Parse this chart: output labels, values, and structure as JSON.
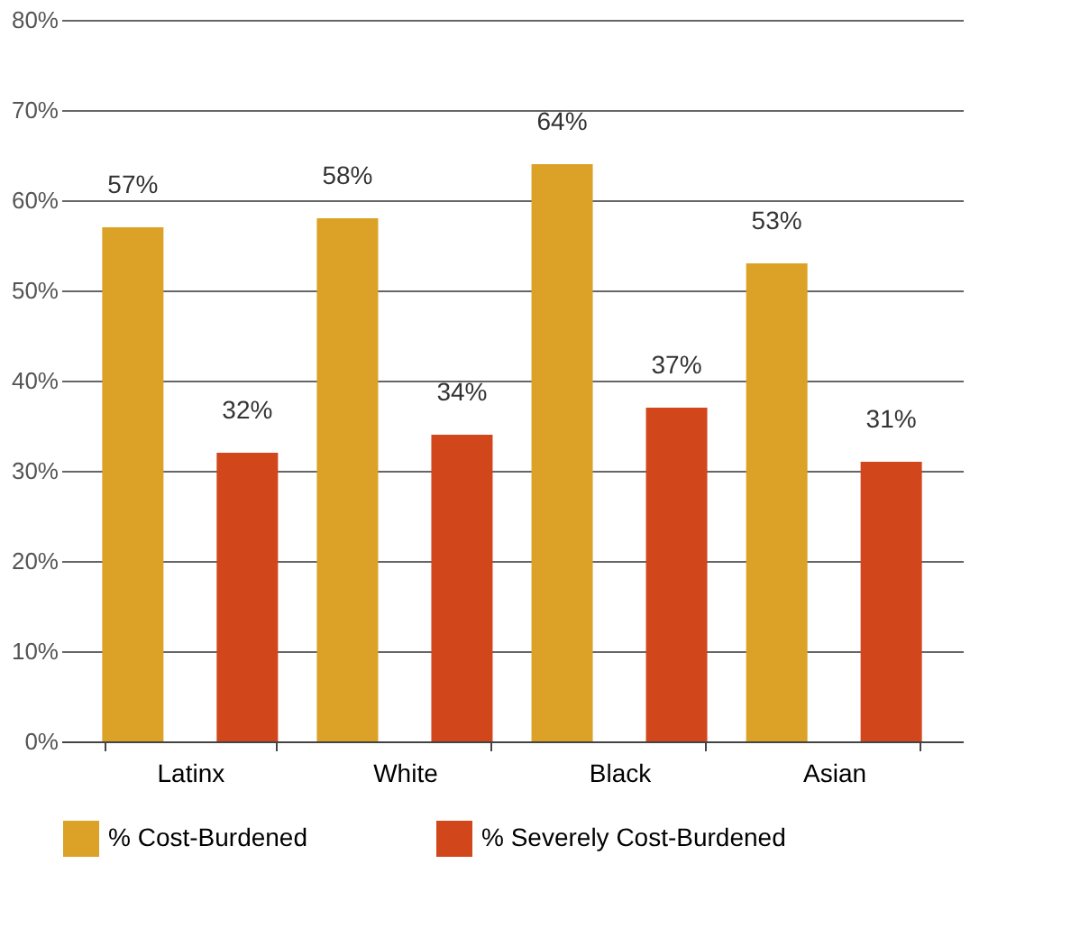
{
  "chart_data": {
    "type": "bar",
    "categories": [
      "Latinx",
      "White",
      "Black",
      "Asian"
    ],
    "series": [
      {
        "name": "% Cost-Burdened",
        "color": "#dca127",
        "values": [
          57,
          58,
          64,
          53
        ],
        "value_labels": [
          "57%",
          "58%",
          "64%",
          "53%"
        ]
      },
      {
        "name": "% Severely Cost-Burdened",
        "color": "#d2461c",
        "values": [
          32,
          34,
          37,
          31
        ],
        "value_labels": [
          "32%",
          "34%",
          "37%",
          "31%"
        ]
      }
    ],
    "ylim": [
      0,
      80
    ],
    "yticks": [
      {
        "value": 0,
        "label": "0%"
      },
      {
        "value": 10,
        "label": "10%"
      },
      {
        "value": 20,
        "label": "20%"
      },
      {
        "value": 30,
        "label": "30%"
      },
      {
        "value": 40,
        "label": "40%"
      },
      {
        "value": 50,
        "label": "50%"
      },
      {
        "value": 60,
        "label": "60%"
      },
      {
        "value": 70,
        "label": "70%"
      },
      {
        "value": 80,
        "label": "80%"
      }
    ],
    "grid": "y",
    "legend": "bottom"
  }
}
